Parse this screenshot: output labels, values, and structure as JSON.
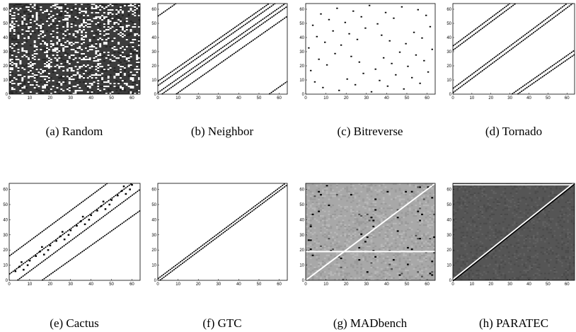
{
  "figure": {
    "panels": [
      {
        "caption": "(a) Random"
      },
      {
        "caption": "(b) Neighbor"
      },
      {
        "caption": "(c) Bitreverse"
      },
      {
        "caption": "(d) Tornado"
      },
      {
        "caption": "(e) Cactus"
      },
      {
        "caption": "(f) GTC"
      },
      {
        "caption": "(g) MADbench"
      },
      {
        "caption": "(h) PARATEC"
      }
    ]
  },
  "chart_data": [
    {
      "type": "heatmap",
      "pattern": "random",
      "background": "#3c3c3c",
      "marks": "white cells scattered uniformly (~20% density)",
      "xlim": [
        0,
        64
      ],
      "ylim": [
        0,
        64
      ],
      "xticks": [
        "0",
        "10",
        "20",
        "30",
        "40",
        "50",
        "60"
      ],
      "yticks": [
        "0",
        "10",
        "20",
        "30",
        "40",
        "50",
        "60"
      ]
    },
    {
      "type": "heatmap",
      "pattern": "diagonal-bands",
      "background": "#ffffff",
      "mark_color": "#000000",
      "xlim": [
        0,
        64
      ],
      "ylim": [
        0,
        64
      ],
      "bands": [
        {
          "x1": 0,
          "y1": 9,
          "x2": 55,
          "y2": 64
        },
        {
          "x1": 0,
          "y1": 6,
          "x2": 58,
          "y2": 64
        },
        {
          "x1": 0,
          "y1": 1,
          "x2": 63,
          "y2": 64
        },
        {
          "x1": 2,
          "y1": 0,
          "x2": 64,
          "y2": 62
        },
        {
          "x1": 9,
          "y1": 0,
          "x2": 64,
          "y2": 55
        },
        {
          "x1": 0,
          "y1": 55,
          "x2": 9,
          "y2": 64
        },
        {
          "x1": 55,
          "y1": 0,
          "x2": 64,
          "y2": 9
        }
      ],
      "xticks": [
        "0",
        "10",
        "20",
        "30",
        "40",
        "50",
        "60"
      ],
      "yticks": [
        "0",
        "10",
        "20",
        "30",
        "40",
        "50",
        "60"
      ]
    },
    {
      "type": "scatter",
      "pattern": "bit-reversal",
      "background": "#ffffff",
      "mark_color": "#000000",
      "xlim": [
        0,
        64
      ],
      "ylim": [
        0,
        64
      ],
      "xticks": [
        "0",
        "10",
        "20",
        "30",
        "40",
        "50",
        "60"
      ],
      "yticks": [
        "0",
        "10",
        "20",
        "30",
        "40",
        "50",
        "60"
      ]
    },
    {
      "type": "heatmap",
      "pattern": "tornado",
      "background": "#ffffff",
      "mark_color": "#000000",
      "xlim": [
        0,
        64
      ],
      "ylim": [
        0,
        64
      ],
      "bands": [
        {
          "x1": 0,
          "y1": 31,
          "x2": 33,
          "y2": 64
        },
        {
          "x1": 0,
          "y1": 34,
          "x2": 30,
          "y2": 64
        },
        {
          "x1": 0,
          "y1": 1,
          "x2": 63,
          "y2": 64
        },
        {
          "x1": 0,
          "y1": 4,
          "x2": 60,
          "y2": 64
        },
        {
          "x1": 31,
          "y1": 0,
          "x2": 64,
          "y2": 31
        },
        {
          "x1": 34,
          "y1": 0,
          "x2": 64,
          "y2": 28
        }
      ],
      "xticks": [
        "0",
        "10",
        "20",
        "30",
        "40",
        "50",
        "60"
      ],
      "yticks": [
        "0",
        "10",
        "20",
        "30",
        "40",
        "50",
        "60"
      ]
    },
    {
      "type": "heatmap",
      "pattern": "cactus-stencil",
      "background": "#ffffff",
      "mark_color": "#000000",
      "xlim": [
        0,
        64
      ],
      "ylim": [
        0,
        64
      ],
      "bands": [
        {
          "x1": 0,
          "y1": 16,
          "x2": 48,
          "y2": 64
        },
        {
          "x1": 16,
          "y1": 0,
          "x2": 64,
          "y2": 46
        },
        {
          "x1": 0,
          "y1": 4,
          "x2": 60,
          "y2": 64
        },
        {
          "x1": 4,
          "y1": 0,
          "x2": 64,
          "y2": 60
        }
      ],
      "xticks": [
        "0",
        "10",
        "20",
        "30",
        "40",
        "50",
        "60"
      ],
      "yticks": [
        "0",
        "10",
        "20",
        "30",
        "40",
        "50",
        "60"
      ]
    },
    {
      "type": "heatmap",
      "pattern": "near-diagonal",
      "background": "#ffffff",
      "mark_color": "#000000",
      "xlim": [
        0,
        64
      ],
      "ylim": [
        0,
        64
      ],
      "bands": [
        {
          "x1": 0,
          "y1": 1,
          "x2": 63,
          "y2": 64
        },
        {
          "x1": 1,
          "y1": 0,
          "x2": 64,
          "y2": 63
        }
      ],
      "xticks": [
        "0",
        "10",
        "20",
        "30",
        "40",
        "50",
        "60"
      ],
      "yticks": [
        "0",
        "10",
        "20",
        "30",
        "40",
        "50",
        "60"
      ]
    },
    {
      "type": "heatmap",
      "pattern": "madbench",
      "background": "#a8a8a8",
      "mark_color": "#000000",
      "xlim": [
        0,
        64
      ],
      "ylim": [
        0,
        64
      ],
      "highlight": {
        "diagonal": "white",
        "row_y": 19
      },
      "xticks": [
        "0",
        "10",
        "20",
        "30",
        "40",
        "50",
        "60"
      ],
      "yticks": [
        "0",
        "10",
        "20",
        "30",
        "40",
        "50",
        "60"
      ]
    },
    {
      "type": "heatmap",
      "pattern": "paratec",
      "background": "#555555",
      "mark_color": "#ffffff",
      "xlim": [
        0,
        64
      ],
      "ylim": [
        0,
        64
      ],
      "highlight": {
        "diagonal": "white/black pair"
      },
      "xticks": [
        "0",
        "10",
        "20",
        "30",
        "40",
        "50",
        "60"
      ],
      "yticks": [
        "0",
        "10",
        "20",
        "30",
        "40",
        "50",
        "60"
      ]
    }
  ]
}
